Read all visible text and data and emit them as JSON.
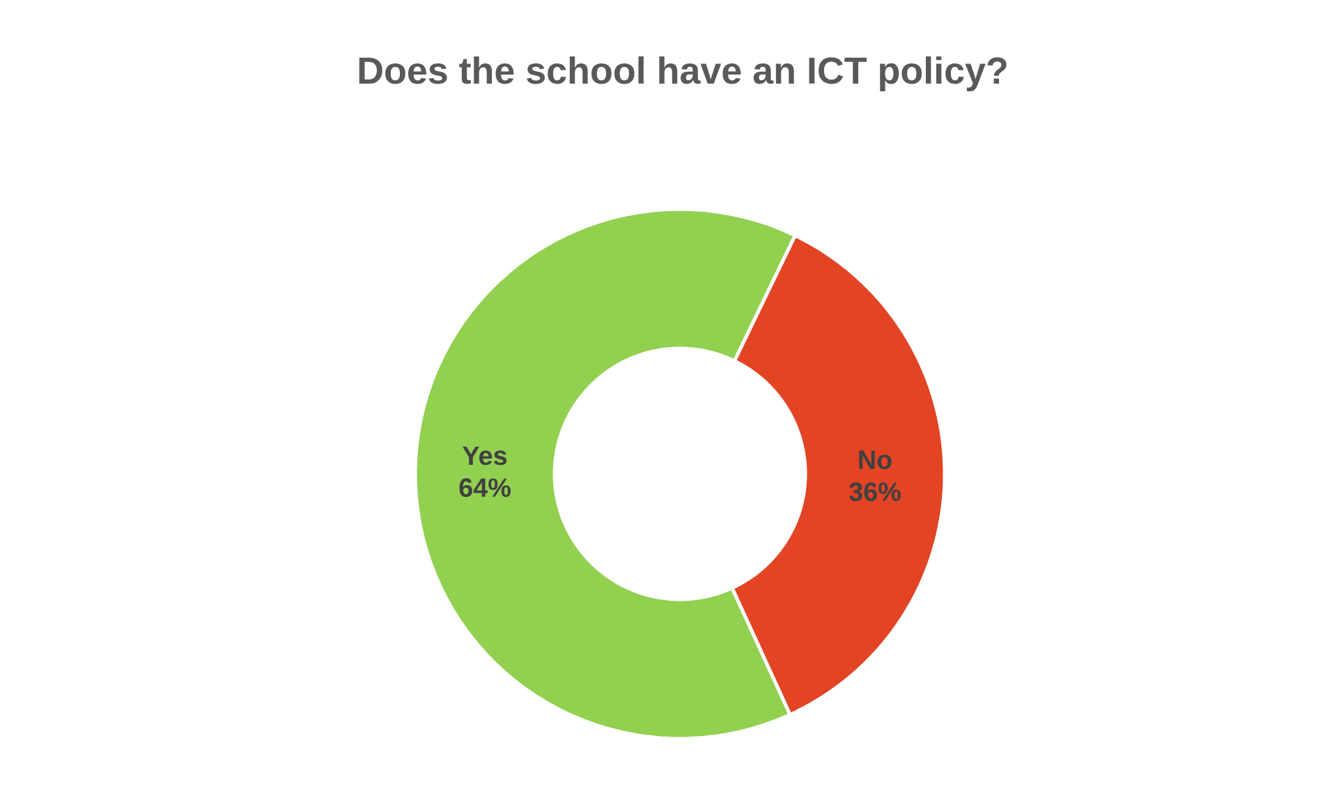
{
  "chart_data": {
    "type": "donut",
    "title": "Does the school have an ICT policy?",
    "categories": [
      "Yes",
      "No"
    ],
    "values": [
      64,
      36
    ],
    "value_labels": [
      "64%",
      "36%"
    ],
    "colors": [
      "#92d050",
      "#e24424"
    ]
  }
}
